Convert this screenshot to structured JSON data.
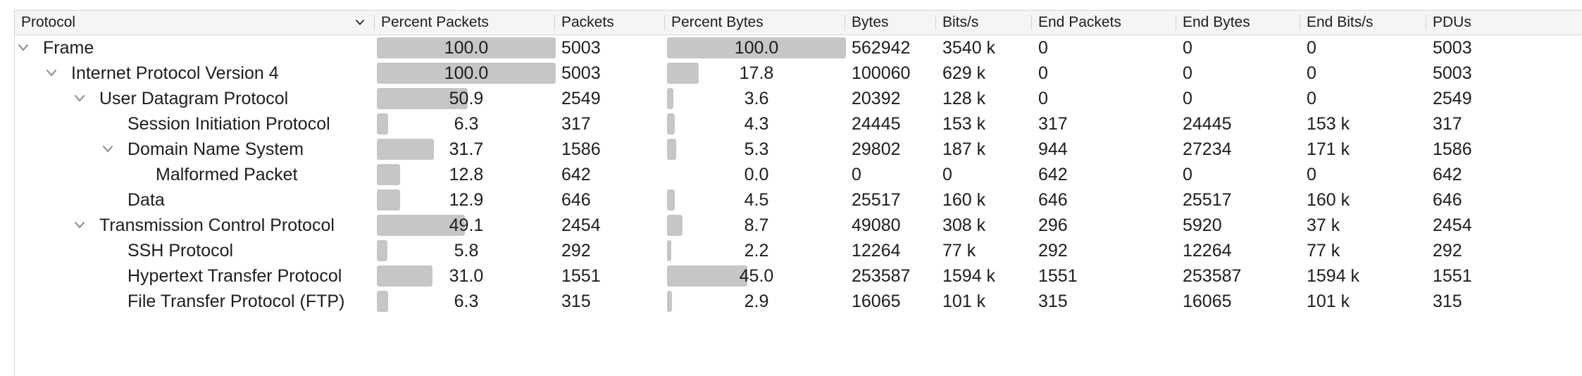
{
  "columns": {
    "protocol": "Protocol",
    "percent_packets": "Percent Packets",
    "packets": "Packets",
    "percent_bytes": "Percent Bytes",
    "bytes": "Bytes",
    "bits_s": "Bits/s",
    "end_packets": "End Packets",
    "end_bytes": "End Bytes",
    "end_bits_s": "End Bits/s",
    "pdus": "PDUs"
  },
  "header_sort_icon": "chevron-down-icon",
  "colors": {
    "bar_fill": "#c6c6c6",
    "header_bg": "#f5f5f5",
    "text": "#1d1d1f"
  },
  "rows": [
    {
      "protocol": "Frame",
      "level": 0,
      "expandable": true,
      "percent_packets": "100.0",
      "percent_packets_fill": 1.0,
      "packets": "5003",
      "percent_bytes": "100.0",
      "percent_bytes_fill": 1.0,
      "bytes": "562942",
      "bits_s": "3540 k",
      "end_packets": "0",
      "end_bytes": "0",
      "end_bits_s": "0",
      "pdus": "5003"
    },
    {
      "protocol": "Internet Protocol Version 4",
      "level": 1,
      "expandable": true,
      "percent_packets": "100.0",
      "percent_packets_fill": 1.0,
      "packets": "5003",
      "percent_bytes": "17.8",
      "percent_bytes_fill": 0.178,
      "bytes": "100060",
      "bits_s": "629 k",
      "end_packets": "0",
      "end_bytes": "0",
      "end_bits_s": "0",
      "pdus": "5003"
    },
    {
      "protocol": "User Datagram Protocol",
      "level": 2,
      "expandable": true,
      "percent_packets": "50.9",
      "percent_packets_fill": 0.509,
      "packets": "2549",
      "percent_bytes": "3.6",
      "percent_bytes_fill": 0.036,
      "bytes": "20392",
      "bits_s": "128 k",
      "end_packets": "0",
      "end_bytes": "0",
      "end_bits_s": "0",
      "pdus": "2549"
    },
    {
      "protocol": "Session Initiation Protocol",
      "level": 3,
      "expandable": false,
      "percent_packets": "6.3",
      "percent_packets_fill": 0.063,
      "packets": "317",
      "percent_bytes": "4.3",
      "percent_bytes_fill": 0.043,
      "bytes": "24445",
      "bits_s": "153 k",
      "end_packets": "317",
      "end_bytes": "24445",
      "end_bits_s": "153 k",
      "pdus": "317"
    },
    {
      "protocol": "Domain Name System",
      "level": 3,
      "expandable": true,
      "percent_packets": "31.7",
      "percent_packets_fill": 0.317,
      "packets": "1586",
      "percent_bytes": "5.3",
      "percent_bytes_fill": 0.053,
      "bytes": "29802",
      "bits_s": "187 k",
      "end_packets": "944",
      "end_bytes": "27234",
      "end_bits_s": "171 k",
      "pdus": "1586"
    },
    {
      "protocol": "Malformed Packet",
      "level": 4,
      "expandable": false,
      "percent_packets": "12.8",
      "percent_packets_fill": 0.128,
      "packets": "642",
      "percent_bytes": "0.0",
      "percent_bytes_fill": 0.0,
      "bytes": "0",
      "bits_s": "0",
      "end_packets": "642",
      "end_bytes": "0",
      "end_bits_s": "0",
      "pdus": "642"
    },
    {
      "protocol": "Data",
      "level": 3,
      "expandable": false,
      "percent_packets": "12.9",
      "percent_packets_fill": 0.129,
      "packets": "646",
      "percent_bytes": "4.5",
      "percent_bytes_fill": 0.045,
      "bytes": "25517",
      "bits_s": "160 k",
      "end_packets": "646",
      "end_bytes": "25517",
      "end_bits_s": "160 k",
      "pdus": "646"
    },
    {
      "protocol": "Transmission Control Protocol",
      "level": 2,
      "expandable": true,
      "percent_packets": "49.1",
      "percent_packets_fill": 0.491,
      "packets": "2454",
      "percent_bytes": "8.7",
      "percent_bytes_fill": 0.087,
      "bytes": "49080",
      "bits_s": "308 k",
      "end_packets": "296",
      "end_bytes": "5920",
      "end_bits_s": "37 k",
      "pdus": "2454"
    },
    {
      "protocol": "SSH Protocol",
      "level": 3,
      "expandable": false,
      "percent_packets": "5.8",
      "percent_packets_fill": 0.058,
      "packets": "292",
      "percent_bytes": "2.2",
      "percent_bytes_fill": 0.022,
      "bytes": "12264",
      "bits_s": "77 k",
      "end_packets": "292",
      "end_bytes": "12264",
      "end_bits_s": "77 k",
      "pdus": "292"
    },
    {
      "protocol": "Hypertext Transfer Protocol",
      "level": 3,
      "expandable": false,
      "percent_packets": "31.0",
      "percent_packets_fill": 0.31,
      "packets": "1551",
      "percent_bytes": "45.0",
      "percent_bytes_fill": 0.45,
      "bytes": "253587",
      "bits_s": "1594 k",
      "end_packets": "1551",
      "end_bytes": "253587",
      "end_bits_s": "1594 k",
      "pdus": "1551"
    },
    {
      "protocol": "File Transfer Protocol (FTP)",
      "level": 3,
      "expandable": false,
      "percent_packets": "6.3",
      "percent_packets_fill": 0.063,
      "packets": "315",
      "percent_bytes": "2.9",
      "percent_bytes_fill": 0.029,
      "bytes": "16065",
      "bits_s": "101 k",
      "end_packets": "315",
      "end_bytes": "16065",
      "end_bits_s": "101 k",
      "pdus": "315"
    }
  ]
}
